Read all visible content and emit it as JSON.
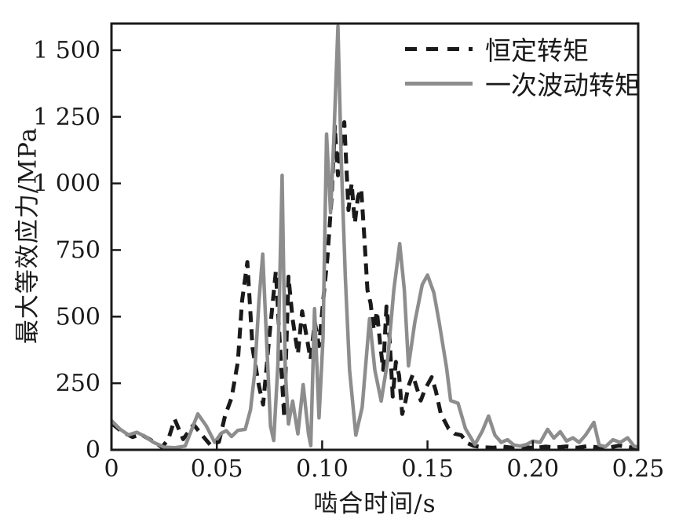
{
  "chart_data": {
    "type": "line",
    "title": "",
    "xlabel": "啮合时间/s",
    "ylabel": "最大等效应力/MPa",
    "xlim": [
      0,
      0.25
    ],
    "ylim": [
      0,
      1600
    ],
    "grid": false,
    "legend_position": "inside-top-right",
    "x_ticks": [
      0,
      0.05,
      0.1,
      0.15,
      0.2,
      0.25
    ],
    "x_tick_labels": [
      "0",
      "0.05",
      "0.10",
      "0.15",
      "0.20",
      "0.25"
    ],
    "y_ticks": [
      0,
      250,
      500,
      750,
      1000,
      1250,
      1500
    ],
    "y_tick_labels": [
      "0",
      "250",
      "500",
      "750",
      "1 000",
      "1 250",
      "1 500"
    ],
    "frame_color": "#1a1a1a",
    "series": [
      {
        "name": "恒定转矩",
        "style": "dashed",
        "color": "#1a1a1a",
        "points": [
          [
            0.0,
            100
          ],
          [
            0.005,
            68
          ],
          [
            0.01,
            48
          ],
          [
            0.014,
            58
          ],
          [
            0.018,
            40
          ],
          [
            0.024,
            10
          ],
          [
            0.027,
            40
          ],
          [
            0.03,
            115
          ],
          [
            0.034,
            40
          ],
          [
            0.039,
            95
          ],
          [
            0.043,
            55
          ],
          [
            0.047,
            18
          ],
          [
            0.051,
            30
          ],
          [
            0.054,
            130
          ],
          [
            0.057,
            195
          ],
          [
            0.06,
            330
          ],
          [
            0.062,
            560
          ],
          [
            0.0645,
            705
          ],
          [
            0.067,
            380
          ],
          [
            0.07,
            240
          ],
          [
            0.072,
            170
          ],
          [
            0.075,
            430
          ],
          [
            0.078,
            670
          ],
          [
            0.08,
            390
          ],
          [
            0.082,
            120
          ],
          [
            0.084,
            650
          ],
          [
            0.086,
            490
          ],
          [
            0.0885,
            360
          ],
          [
            0.0905,
            520
          ],
          [
            0.0925,
            430
          ],
          [
            0.0945,
            340
          ],
          [
            0.0965,
            480
          ],
          [
            0.0985,
            390
          ],
          [
            0.1005,
            560
          ],
          [
            0.1025,
            720
          ],
          [
            0.1045,
            950
          ],
          [
            0.106,
            1215
          ],
          [
            0.1075,
            1030
          ],
          [
            0.109,
            1150
          ],
          [
            0.1105,
            1230
          ],
          [
            0.1125,
            900
          ],
          [
            0.114,
            1000
          ],
          [
            0.1155,
            850
          ],
          [
            0.117,
            950
          ],
          [
            0.1185,
            980
          ],
          [
            0.12,
            800
          ],
          [
            0.1215,
            600
          ],
          [
            0.123,
            550
          ],
          [
            0.1245,
            450
          ],
          [
            0.126,
            520
          ],
          [
            0.1275,
            400
          ],
          [
            0.129,
            300
          ],
          [
            0.1305,
            538
          ],
          [
            0.132,
            420
          ],
          [
            0.1335,
            200
          ],
          [
            0.135,
            330
          ],
          [
            0.1365,
            280
          ],
          [
            0.138,
            135
          ],
          [
            0.1395,
            180
          ],
          [
            0.141,
            240
          ],
          [
            0.143,
            282
          ],
          [
            0.145,
            230
          ],
          [
            0.1468,
            185
          ],
          [
            0.149,
            230
          ],
          [
            0.152,
            273
          ],
          [
            0.154,
            220
          ],
          [
            0.1564,
            132
          ],
          [
            0.158,
            110
          ],
          [
            0.16,
            80
          ],
          [
            0.163,
            60
          ],
          [
            0.166,
            55
          ],
          [
            0.169,
            25
          ],
          [
            0.172,
            15
          ],
          [
            0.176,
            10
          ],
          [
            0.181,
            8
          ],
          [
            0.186,
            12
          ],
          [
            0.191,
            8
          ],
          [
            0.196,
            10
          ],
          [
            0.201,
            7
          ],
          [
            0.206,
            12
          ],
          [
            0.211,
            9
          ],
          [
            0.216,
            13
          ],
          [
            0.221,
            8
          ],
          [
            0.226,
            14
          ],
          [
            0.231,
            9
          ],
          [
            0.236,
            8
          ],
          [
            0.241,
            16
          ],
          [
            0.246,
            10
          ],
          [
            0.25,
            8
          ]
        ]
      },
      {
        "name": "一次波动转矩",
        "style": "solid",
        "color": "#8d8d8d",
        "points": [
          [
            0.0,
            110
          ],
          [
            0.004,
            78
          ],
          [
            0.008,
            56
          ],
          [
            0.012,
            66
          ],
          [
            0.016,
            50
          ],
          [
            0.02,
            28
          ],
          [
            0.025,
            10
          ],
          [
            0.03,
            8
          ],
          [
            0.035,
            14
          ],
          [
            0.041,
            135
          ],
          [
            0.045,
            90
          ],
          [
            0.049,
            28
          ],
          [
            0.052,
            62
          ],
          [
            0.0545,
            72
          ],
          [
            0.057,
            50
          ],
          [
            0.06,
            73
          ],
          [
            0.0635,
            77
          ],
          [
            0.066,
            150
          ],
          [
            0.068,
            290
          ],
          [
            0.07,
            560
          ],
          [
            0.0718,
            735
          ],
          [
            0.0735,
            430
          ],
          [
            0.0755,
            90
          ],
          [
            0.077,
            35
          ],
          [
            0.079,
            320
          ],
          [
            0.081,
            1030
          ],
          [
            0.0825,
            300
          ],
          [
            0.084,
            97
          ],
          [
            0.086,
            183
          ],
          [
            0.0885,
            60
          ],
          [
            0.091,
            245
          ],
          [
            0.0935,
            60
          ],
          [
            0.0946,
            16
          ],
          [
            0.0964,
            530
          ],
          [
            0.0985,
            120
          ],
          [
            0.1004,
            420
          ],
          [
            0.1021,
            1185
          ],
          [
            0.104,
            890
          ],
          [
            0.1055,
            1160
          ],
          [
            0.1075,
            1590
          ],
          [
            0.109,
            1100
          ],
          [
            0.111,
            650
          ],
          [
            0.113,
            300
          ],
          [
            0.116,
            55
          ],
          [
            0.119,
            160
          ],
          [
            0.1225,
            492
          ],
          [
            0.125,
            300
          ],
          [
            0.128,
            183
          ],
          [
            0.131,
            330
          ],
          [
            0.134,
            600
          ],
          [
            0.1368,
            774
          ],
          [
            0.139,
            600
          ],
          [
            0.141,
            315
          ],
          [
            0.144,
            480
          ],
          [
            0.1475,
            620
          ],
          [
            0.15,
            656
          ],
          [
            0.153,
            590
          ],
          [
            0.1555,
            480
          ],
          [
            0.159,
            310
          ],
          [
            0.161,
            185
          ],
          [
            0.1645,
            175
          ],
          [
            0.168,
            80
          ],
          [
            0.1725,
            20
          ],
          [
            0.176,
            70
          ],
          [
            0.179,
            127
          ],
          [
            0.182,
            55
          ],
          [
            0.185,
            28
          ],
          [
            0.188,
            38
          ],
          [
            0.191,
            18
          ],
          [
            0.194,
            14
          ],
          [
            0.197,
            20
          ],
          [
            0.2,
            33
          ],
          [
            0.2035,
            28
          ],
          [
            0.207,
            77
          ],
          [
            0.21,
            44
          ],
          [
            0.213,
            68
          ],
          [
            0.216,
            33
          ],
          [
            0.219,
            45
          ],
          [
            0.222,
            28
          ],
          [
            0.225,
            55
          ],
          [
            0.229,
            103
          ],
          [
            0.2315,
            18
          ],
          [
            0.2345,
            12
          ],
          [
            0.238,
            38
          ],
          [
            0.2415,
            28
          ],
          [
            0.245,
            45
          ],
          [
            0.248,
            14
          ],
          [
            0.25,
            10
          ]
        ]
      }
    ]
  }
}
